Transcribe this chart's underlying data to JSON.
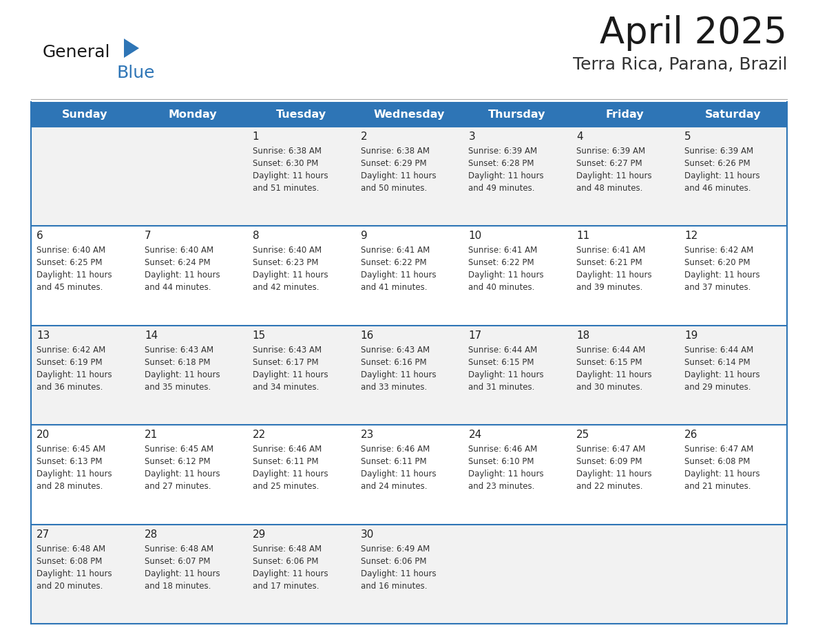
{
  "title": "April 2025",
  "subtitle": "Terra Rica, Parana, Brazil",
  "header_bg": "#2E75B6",
  "header_text_color": "#FFFFFF",
  "row_bg_even": "#F2F2F2",
  "row_bg_odd": "#FFFFFF",
  "text_color": "#222222",
  "day_names": [
    "Sunday",
    "Monday",
    "Tuesday",
    "Wednesday",
    "Thursday",
    "Friday",
    "Saturday"
  ],
  "days": [
    {
      "day": 1,
      "col": 2,
      "row": 0,
      "sunrise": "6:38 AM",
      "sunset": "6:30 PM",
      "daylight": "11 hours and 51 minutes."
    },
    {
      "day": 2,
      "col": 3,
      "row": 0,
      "sunrise": "6:38 AM",
      "sunset": "6:29 PM",
      "daylight": "11 hours and 50 minutes."
    },
    {
      "day": 3,
      "col": 4,
      "row": 0,
      "sunrise": "6:39 AM",
      "sunset": "6:28 PM",
      "daylight": "11 hours and 49 minutes."
    },
    {
      "day": 4,
      "col": 5,
      "row": 0,
      "sunrise": "6:39 AM",
      "sunset": "6:27 PM",
      "daylight": "11 hours and 48 minutes."
    },
    {
      "day": 5,
      "col": 6,
      "row": 0,
      "sunrise": "6:39 AM",
      "sunset": "6:26 PM",
      "daylight": "11 hours and 46 minutes."
    },
    {
      "day": 6,
      "col": 0,
      "row": 1,
      "sunrise": "6:40 AM",
      "sunset": "6:25 PM",
      "daylight": "11 hours and 45 minutes."
    },
    {
      "day": 7,
      "col": 1,
      "row": 1,
      "sunrise": "6:40 AM",
      "sunset": "6:24 PM",
      "daylight": "11 hours and 44 minutes."
    },
    {
      "day": 8,
      "col": 2,
      "row": 1,
      "sunrise": "6:40 AM",
      "sunset": "6:23 PM",
      "daylight": "11 hours and 42 minutes."
    },
    {
      "day": 9,
      "col": 3,
      "row": 1,
      "sunrise": "6:41 AM",
      "sunset": "6:22 PM",
      "daylight": "11 hours and 41 minutes."
    },
    {
      "day": 10,
      "col": 4,
      "row": 1,
      "sunrise": "6:41 AM",
      "sunset": "6:22 PM",
      "daylight": "11 hours and 40 minutes."
    },
    {
      "day": 11,
      "col": 5,
      "row": 1,
      "sunrise": "6:41 AM",
      "sunset": "6:21 PM",
      "daylight": "11 hours and 39 minutes."
    },
    {
      "day": 12,
      "col": 6,
      "row": 1,
      "sunrise": "6:42 AM",
      "sunset": "6:20 PM",
      "daylight": "11 hours and 37 minutes."
    },
    {
      "day": 13,
      "col": 0,
      "row": 2,
      "sunrise": "6:42 AM",
      "sunset": "6:19 PM",
      "daylight": "11 hours and 36 minutes."
    },
    {
      "day": 14,
      "col": 1,
      "row": 2,
      "sunrise": "6:43 AM",
      "sunset": "6:18 PM",
      "daylight": "11 hours and 35 minutes."
    },
    {
      "day": 15,
      "col": 2,
      "row": 2,
      "sunrise": "6:43 AM",
      "sunset": "6:17 PM",
      "daylight": "11 hours and 34 minutes."
    },
    {
      "day": 16,
      "col": 3,
      "row": 2,
      "sunrise": "6:43 AM",
      "sunset": "6:16 PM",
      "daylight": "11 hours and 33 minutes."
    },
    {
      "day": 17,
      "col": 4,
      "row": 2,
      "sunrise": "6:44 AM",
      "sunset": "6:15 PM",
      "daylight": "11 hours and 31 minutes."
    },
    {
      "day": 18,
      "col": 5,
      "row": 2,
      "sunrise": "6:44 AM",
      "sunset": "6:15 PM",
      "daylight": "11 hours and 30 minutes."
    },
    {
      "day": 19,
      "col": 6,
      "row": 2,
      "sunrise": "6:44 AM",
      "sunset": "6:14 PM",
      "daylight": "11 hours and 29 minutes."
    },
    {
      "day": 20,
      "col": 0,
      "row": 3,
      "sunrise": "6:45 AM",
      "sunset": "6:13 PM",
      "daylight": "11 hours and 28 minutes."
    },
    {
      "day": 21,
      "col": 1,
      "row": 3,
      "sunrise": "6:45 AM",
      "sunset": "6:12 PM",
      "daylight": "11 hours and 27 minutes."
    },
    {
      "day": 22,
      "col": 2,
      "row": 3,
      "sunrise": "6:46 AM",
      "sunset": "6:11 PM",
      "daylight": "11 hours and 25 minutes."
    },
    {
      "day": 23,
      "col": 3,
      "row": 3,
      "sunrise": "6:46 AM",
      "sunset": "6:11 PM",
      "daylight": "11 hours and 24 minutes."
    },
    {
      "day": 24,
      "col": 4,
      "row": 3,
      "sunrise": "6:46 AM",
      "sunset": "6:10 PM",
      "daylight": "11 hours and 23 minutes."
    },
    {
      "day": 25,
      "col": 5,
      "row": 3,
      "sunrise": "6:47 AM",
      "sunset": "6:09 PM",
      "daylight": "11 hours and 22 minutes."
    },
    {
      "day": 26,
      "col": 6,
      "row": 3,
      "sunrise": "6:47 AM",
      "sunset": "6:08 PM",
      "daylight": "11 hours and 21 minutes."
    },
    {
      "day": 27,
      "col": 0,
      "row": 4,
      "sunrise": "6:48 AM",
      "sunset": "6:08 PM",
      "daylight": "11 hours and 20 minutes."
    },
    {
      "day": 28,
      "col": 1,
      "row": 4,
      "sunrise": "6:48 AM",
      "sunset": "6:07 PM",
      "daylight": "11 hours and 18 minutes."
    },
    {
      "day": 29,
      "col": 2,
      "row": 4,
      "sunrise": "6:48 AM",
      "sunset": "6:06 PM",
      "daylight": "11 hours and 17 minutes."
    },
    {
      "day": 30,
      "col": 3,
      "row": 4,
      "sunrise": "6:49 AM",
      "sunset": "6:06 PM",
      "daylight": "11 hours and 16 minutes."
    }
  ],
  "num_rows": 5,
  "num_cols": 7
}
